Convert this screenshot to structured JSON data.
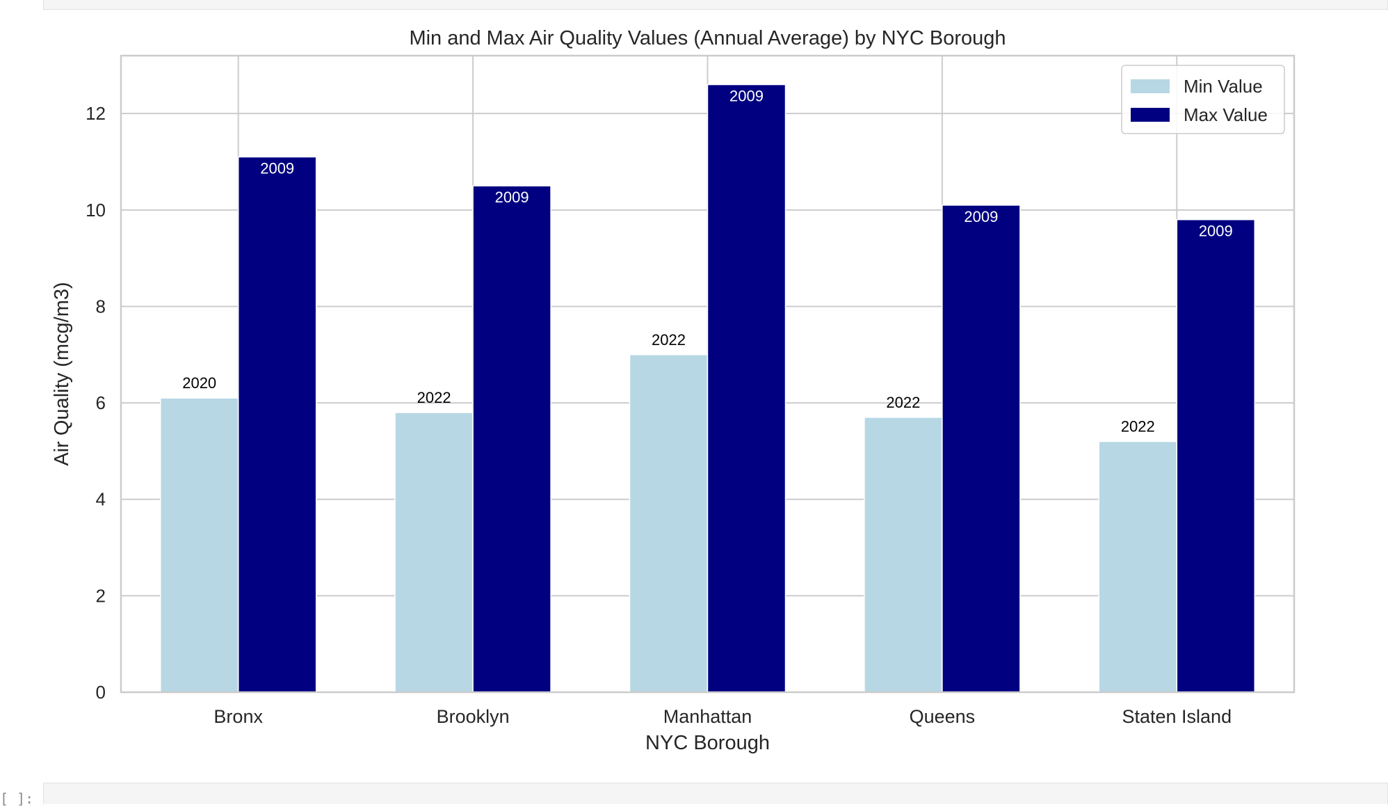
{
  "notebook": {
    "next_prompt": "[ ]:"
  },
  "chart_data": {
    "type": "bar",
    "title": "Min and Max Air Quality Values (Annual Average) by NYC Borough",
    "xlabel": "NYC Borough",
    "ylabel": "Air Quality (mcg/m3)",
    "categories": [
      "Bronx",
      "Brooklyn",
      "Manhattan",
      "Queens",
      "Staten Island"
    ],
    "ylim": [
      0,
      13.2
    ],
    "yticks": [
      0,
      2,
      4,
      6,
      8,
      10,
      12
    ],
    "grid": true,
    "legend_position": "top-right",
    "series": [
      {
        "name": "Min Value",
        "color": "#b7d7e4",
        "values": [
          6.1,
          5.8,
          7.0,
          5.7,
          5.2
        ],
        "labels": [
          "2020",
          "2022",
          "2022",
          "2022",
          "2022"
        ]
      },
      {
        "name": "Max Value",
        "color": "#000080",
        "values": [
          11.1,
          10.5,
          12.6,
          10.1,
          9.8
        ],
        "labels": [
          "2009",
          "2009",
          "2009",
          "2009",
          "2009"
        ]
      }
    ]
  }
}
